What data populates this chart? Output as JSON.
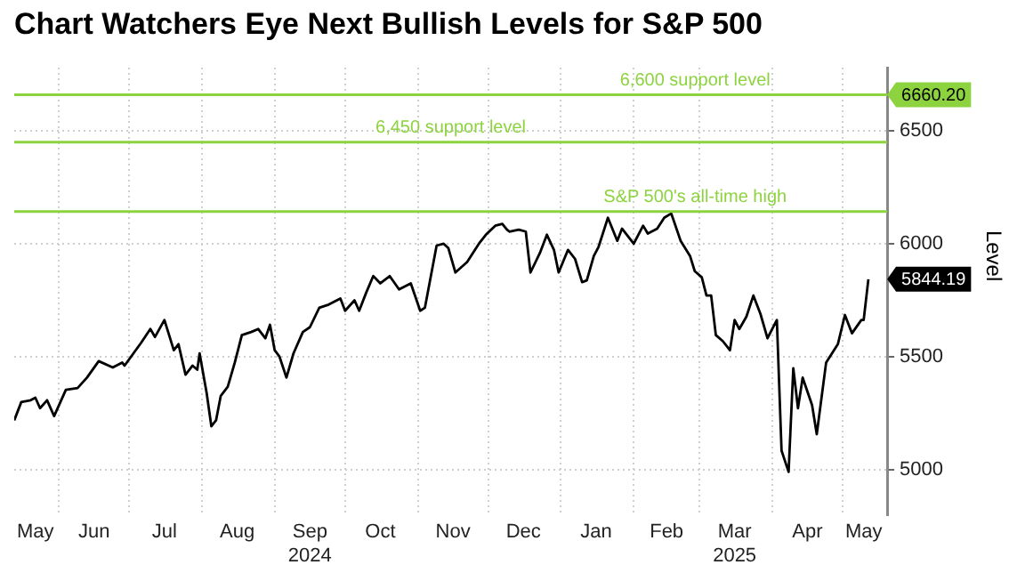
{
  "chart_data": {
    "type": "line",
    "title": "Chart Watchers Eye Next Bullish Levels for S&P 500",
    "ylabel": "Level",
    "x": [
      "2024-05-13",
      "2024-05-16",
      "2024-05-20",
      "2024-05-22",
      "2024-05-24",
      "2024-05-27",
      "2024-05-30",
      "2024-06-04",
      "2024-06-09",
      "2024-06-13",
      "2024-06-18",
      "2024-06-24",
      "2024-06-28",
      "2024-06-29",
      "2024-07-06",
      "2024-07-10",
      "2024-07-12",
      "2024-07-16",
      "2024-07-20",
      "2024-07-22",
      "2024-07-25",
      "2024-07-28",
      "2024-07-30",
      "2024-07-31",
      "2024-08-03",
      "2024-08-05",
      "2024-08-07",
      "2024-08-09",
      "2024-08-12",
      "2024-08-15",
      "2024-08-18",
      "2024-08-22",
      "2024-08-25",
      "2024-08-28",
      "2024-08-30",
      "2024-09-01",
      "2024-09-03",
      "2024-09-06",
      "2024-09-09",
      "2024-09-13",
      "2024-09-16",
      "2024-09-20",
      "2024-09-24",
      "2024-09-29",
      "2024-10-01",
      "2024-10-05",
      "2024-10-07",
      "2024-10-10",
      "2024-10-13",
      "2024-10-16",
      "2024-10-20",
      "2024-10-24",
      "2024-10-29",
      "2024-11-02",
      "2024-11-04",
      "2024-11-09",
      "2024-11-12",
      "2024-11-14",
      "2024-11-17",
      "2024-11-22",
      "2024-11-27",
      "2024-11-30",
      "2024-12-04",
      "2024-12-07",
      "2024-12-09",
      "2024-12-10",
      "2024-12-14",
      "2024-12-17",
      "2024-12-19",
      "2024-12-23",
      "2024-12-26",
      "2024-12-29",
      "2024-12-31",
      "2025-01-04",
      "2025-01-07",
      "2025-01-10",
      "2025-01-12",
      "2025-01-15",
      "2025-01-17",
      "2025-01-21",
      "2025-01-25",
      "2025-01-27",
      "2025-02-01",
      "2025-02-05",
      "2025-02-07",
      "2025-02-11",
      "2025-02-14",
      "2025-02-17",
      "2025-02-21",
      "2025-02-25",
      "2025-02-27",
      "2025-03-02",
      "2025-03-04",
      "2025-03-06",
      "2025-03-08",
      "2025-03-11",
      "2025-03-14",
      "2025-03-16",
      "2025-03-18",
      "2025-03-21",
      "2025-03-24",
      "2025-03-27",
      "2025-03-30",
      "2025-04-03",
      "2025-04-05",
      "2025-04-08",
      "2025-04-10",
      "2025-04-12",
      "2025-04-14",
      "2025-04-18",
      "2025-04-20",
      "2025-04-24",
      "2025-04-29",
      "2025-05-02",
      "2025-05-05",
      "2025-05-09",
      "2025-05-10",
      "2025-05-12"
    ],
    "series": [
      {
        "color": "#000000",
        "values": [
          5220,
          5301,
          5309,
          5320,
          5274,
          5309,
          5239,
          5355,
          5363,
          5409,
          5482,
          5454,
          5476,
          5462,
          5562,
          5624,
          5589,
          5664,
          5530,
          5557,
          5422,
          5462,
          5444,
          5516,
          5341,
          5194,
          5220,
          5328,
          5369,
          5476,
          5597,
          5611,
          5624,
          5583,
          5643,
          5530,
          5503,
          5409,
          5516,
          5611,
          5632,
          5718,
          5732,
          5759,
          5705,
          5751,
          5705,
          5785,
          5858,
          5826,
          5858,
          5799,
          5826,
          5705,
          5718,
          5993,
          6001,
          5982,
          5874,
          5920,
          6001,
          6041,
          6081,
          6089,
          6063,
          6055,
          6063,
          6055,
          5874,
          5960,
          6041,
          5974,
          5874,
          5974,
          5934,
          5831,
          5839,
          5947,
          5987,
          6116,
          6014,
          6068,
          6001,
          6081,
          6046,
          6068,
          6116,
          6135,
          6014,
          5947,
          5880,
          5853,
          5772,
          5772,
          5597,
          5570,
          5530,
          5664,
          5624,
          5678,
          5772,
          5691,
          5583,
          5664,
          5086,
          4992,
          5450,
          5274,
          5409,
          5288,
          5159,
          5476,
          5557,
          5686,
          5605,
          5664,
          5664,
          5844.19
        ]
      }
    ],
    "xlim": [
      "2024-05-13",
      "2025-05-20"
    ],
    "xticks": [
      {
        "value": "2024-05-22",
        "label": "May"
      },
      {
        "value": "2024-06-01",
        "label": null
      },
      {
        "value": "2024-06-16",
        "label": "Jun"
      },
      {
        "value": "2024-07-01",
        "label": null
      },
      {
        "value": "2024-07-16",
        "label": "Jul"
      },
      {
        "value": "2024-08-01",
        "label": null
      },
      {
        "value": "2024-08-16",
        "label": "Aug"
      },
      {
        "value": "2024-09-01",
        "label": null
      },
      {
        "value": "2024-09-16",
        "label": "Sep\n2024"
      },
      {
        "value": "2024-10-01",
        "label": null
      },
      {
        "value": "2024-10-16",
        "label": "Oct"
      },
      {
        "value": "2024-11-01",
        "label": null
      },
      {
        "value": "2024-11-16",
        "label": "Nov"
      },
      {
        "value": "2024-12-01",
        "label": null
      },
      {
        "value": "2024-12-16",
        "label": "Dec"
      },
      {
        "value": "2025-01-01",
        "label": null
      },
      {
        "value": "2025-01-16",
        "label": "Jan"
      },
      {
        "value": "2025-02-01",
        "label": null
      },
      {
        "value": "2025-02-15",
        "label": "Feb"
      },
      {
        "value": "2025-03-01",
        "label": null
      },
      {
        "value": "2025-03-16",
        "label": "Mar\n2025"
      },
      {
        "value": "2025-04-01",
        "label": null
      },
      {
        "value": "2025-04-16",
        "label": "Apr"
      },
      {
        "value": "2025-05-01",
        "label": null
      },
      {
        "value": "2025-05-10",
        "label": "May"
      }
    ],
    "ylim": [
      4800,
      6780
    ],
    "yticks": [
      5000,
      5500,
      6000,
      6500
    ],
    "grid": true,
    "line_style": "solid",
    "ref_lines": [
      {
        "axis": "y",
        "value": 6660.2,
        "label": "6,600 support level",
        "color": "#8cd33f"
      },
      {
        "axis": "y",
        "value": 6450,
        "label": "6,450 support level",
        "color": "#8cd33f"
      },
      {
        "axis": "y",
        "value": 6144,
        "label": "S&P 500's all-time high",
        "color": "#8cd33f"
      }
    ],
    "annotations": [
      {
        "text": "6660.20",
        "x": "2025-05-20",
        "y": 6660.2
      },
      {
        "text": "5844.19",
        "x": "2025-05-12",
        "y": 5844.19
      }
    ]
  }
}
